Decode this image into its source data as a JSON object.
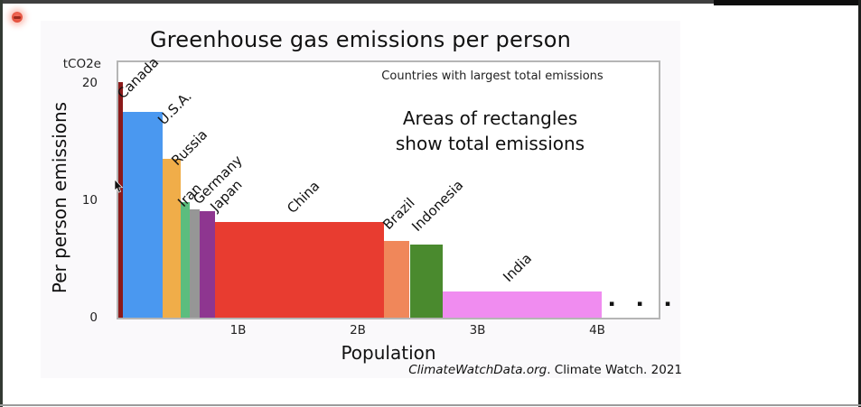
{
  "chart": {
    "title": "Greenhouse gas emissions per person",
    "unit_label": "tCO2e",
    "y_axis_label": "Per person emissions",
    "x_axis_label": "Population",
    "note_small": "Countries with largest total emissions",
    "note_line1": "Areas of rectangles",
    "note_line2": "show total emissions",
    "source_italic": "ClimateWatchData.org",
    "source_regular": ". Climate Watch. 2021",
    "more_marker": "▪ ▪ ▪"
  },
  "chart_data": {
    "type": "bar",
    "variant": "variable-width (area = total emissions)",
    "title": "Greenhouse gas emissions per person",
    "xlabel": "Population",
    "ylabel": "Per person emissions",
    "y_unit": "tCO2e",
    "x_unit": "billions of people",
    "ylim": [
      0,
      21
    ],
    "xlim_billions": [
      0,
      4.53
    ],
    "y_ticks": [
      20,
      10,
      0
    ],
    "x_ticks_billions": [
      1,
      2,
      3,
      4
    ],
    "x_tick_labels": [
      "1B",
      "2B",
      "3B",
      "4B"
    ],
    "grid": false,
    "legend": "none",
    "annotations": [
      "Countries with largest total emissions",
      "Areas of rectangles show total emissions",
      "..."
    ],
    "source": "ClimateWatchData.org. Climate Watch. 2021",
    "countries": [
      {
        "name": "Canada",
        "population_billions": 0.038,
        "per_person_tco2e": 20.1,
        "color": "#8b1a1a"
      },
      {
        "name": "U.S.A.",
        "population_billions": 0.335,
        "per_person_tco2e": 17.6,
        "color": "#4a98f0"
      },
      {
        "name": "Russia",
        "population_billions": 0.145,
        "per_person_tco2e": 13.6,
        "color": "#f0ad49"
      },
      {
        "name": "Iran",
        "population_billions": 0.075,
        "per_person_tco2e": 9.9,
        "color": "#5cbd7e"
      },
      {
        "name": "Germany",
        "population_billions": 0.083,
        "per_person_tco2e": 9.3,
        "color": "#969696"
      },
      {
        "name": "Japan",
        "population_billions": 0.13,
        "per_person_tco2e": 9.1,
        "color": "#8e3690"
      },
      {
        "name": "China",
        "population_billions": 1.416,
        "per_person_tco2e": 8.2,
        "color": "#e83c30"
      },
      {
        "name": "Brazil",
        "population_billions": 0.212,
        "per_person_tco2e": 6.6,
        "color": "#f0875a"
      },
      {
        "name": "Indonesia",
        "population_billions": 0.272,
        "per_person_tco2e": 6.3,
        "color": "#4a8a2e"
      },
      {
        "name": "India",
        "population_billions": 1.335,
        "per_person_tco2e": 2.3,
        "color": "#f08cf0"
      }
    ]
  }
}
